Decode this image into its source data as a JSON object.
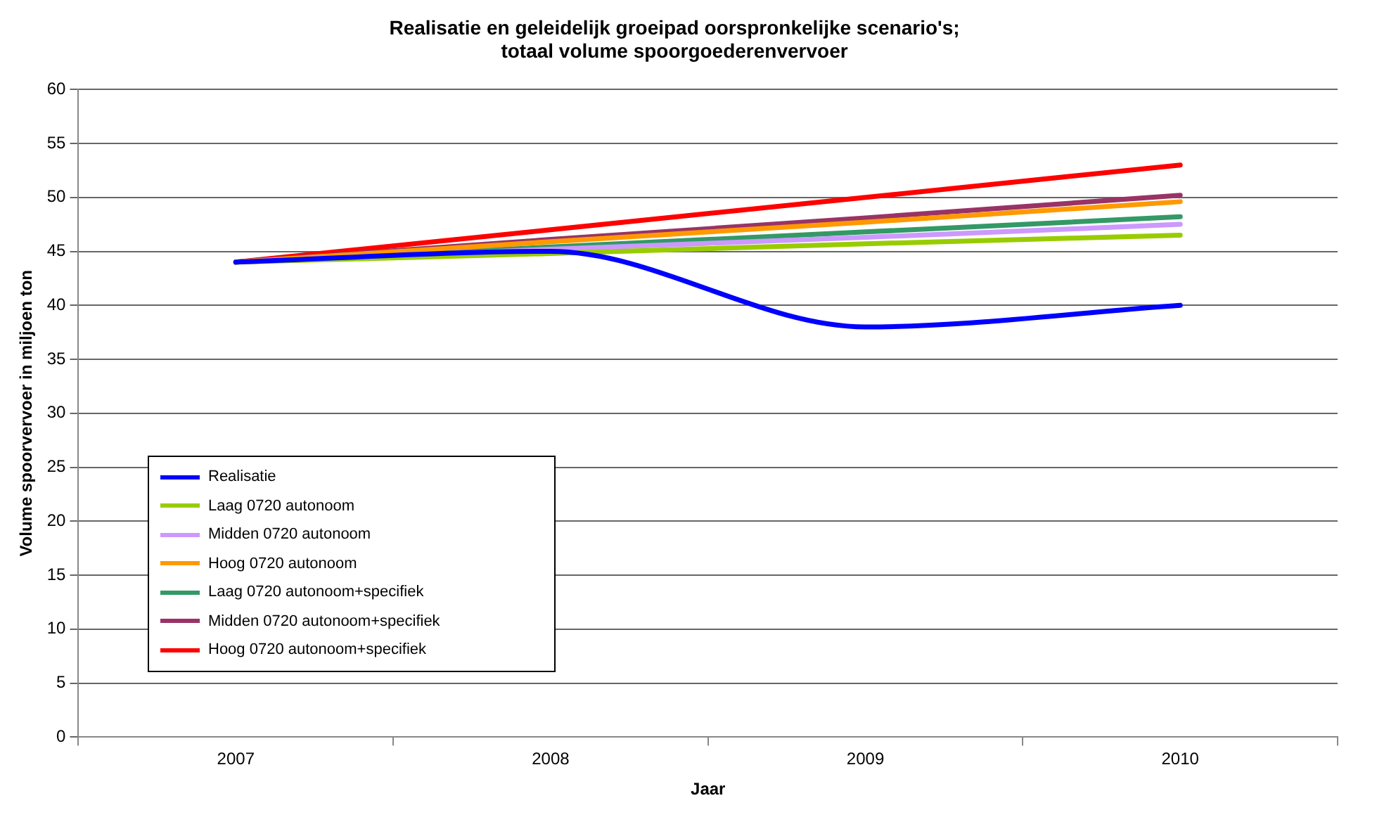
{
  "chart_data": {
    "type": "line",
    "title": "Realisatie en geleidelijk groeipad oorspronkelijke scenario's;\ntotaal volume spoorgoederenvervoer",
    "xlabel": "Jaar",
    "ylabel": "Volume spoorvervoer in miljoen ton",
    "categories": [
      "2007",
      "2008",
      "2009",
      "2010"
    ],
    "series": [
      {
        "name": "Realisatie",
        "color": "#0000ff",
        "values": [
          44,
          45,
          38,
          40
        ]
      },
      {
        "name": "Laag 0720 autonoom",
        "color": "#99cc00",
        "values": [
          44,
          44.8,
          45.7,
          46.5
        ]
      },
      {
        "name": "Midden 0720 autonoom",
        "color": "#cc99ff",
        "values": [
          44,
          45.2,
          46.3,
          47.5
        ]
      },
      {
        "name": "Hoog 0720 autonoom",
        "color": "#ff9900",
        "values": [
          44,
          45.9,
          47.7,
          49.6
        ]
      },
      {
        "name": "Laag 0720 autonoom+specifiek",
        "color": "#339966",
        "values": [
          44,
          45.4,
          46.8,
          48.2
        ]
      },
      {
        "name": "Midden 0720 autonoom+specifiek",
        "color": "#993366",
        "values": [
          44,
          46.1,
          48.1,
          50.2
        ]
      },
      {
        "name": "Hoog 0720 autonoom+specifiek",
        "color": "#ff0000",
        "values": [
          44,
          47,
          50,
          53
        ]
      }
    ],
    "ylim": [
      0,
      60
    ],
    "yticks": [
      0,
      5,
      10,
      15,
      20,
      25,
      30,
      35,
      40,
      45,
      50,
      55,
      60
    ],
    "grid": "y",
    "legend": "bottom left",
    "marker": "none",
    "line_style": "solid"
  }
}
